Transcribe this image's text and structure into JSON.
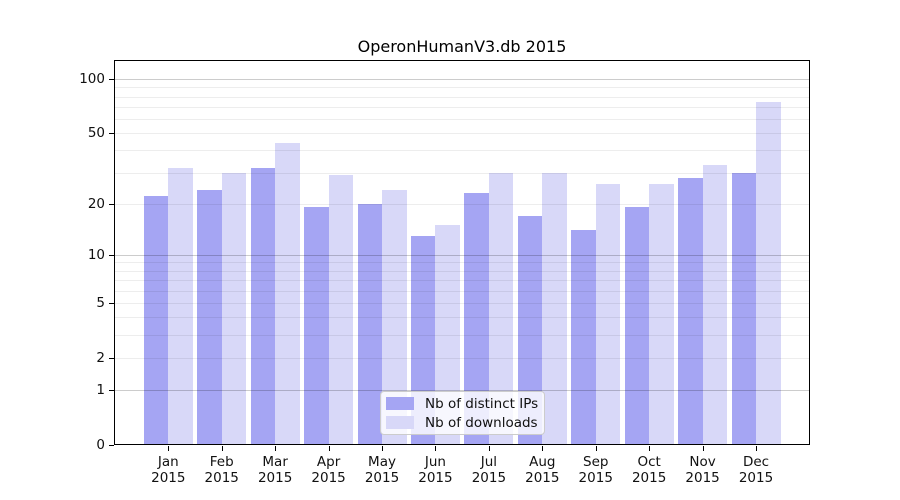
{
  "chart": {
    "title": "OperonHumanV3.db 2015",
    "legend": [
      {
        "label": "Nb of distinct IPs",
        "series": "distinct_ips"
      },
      {
        "label": "Nb of downloads",
        "series": "downloads"
      }
    ],
    "colors": {
      "distinct_ips": "#a5a5f3",
      "downloads": "#d8d8f8",
      "grid_minor": "rgba(0,0,0,0.07)",
      "grid_major": "rgba(0,0,0,0.20)",
      "spine": "#000000",
      "text": "#111111",
      "legend_bg": "rgba(255,255,255,0.8)",
      "legend_border": "#cccccc"
    }
  },
  "chart_data": {
    "type": "bar",
    "title": "OperonHumanV3.db 2015",
    "categories": [
      "Jan 2015",
      "Feb 2015",
      "Mar 2015",
      "Apr 2015",
      "May 2015",
      "Jun 2015",
      "Jul 2015",
      "Aug 2015",
      "Sep 2015",
      "Oct 2015",
      "Nov 2015",
      "Dec 2015"
    ],
    "series": [
      {
        "name": "Nb of distinct IPs",
        "color": "#a5a5f3",
        "values": [
          22,
          24,
          32,
          19,
          20,
          13,
          23,
          17,
          14,
          19,
          28,
          30
        ]
      },
      {
        "name": "Nb of downloads",
        "color": "#d8d8f8",
        "values": [
          32,
          30,
          44,
          29,
          24,
          15,
          30,
          30,
          26,
          26,
          33,
          75
        ]
      }
    ],
    "xlabel": "",
    "ylabel": "",
    "yscale": "symlog-ln(1+v)",
    "ylim": [
      0,
      127
    ],
    "y_ticks": [
      100,
      50,
      20,
      10,
      5,
      2,
      1,
      0
    ],
    "y_major_gridlines": [
      1,
      10,
      100
    ],
    "y_minor_gridlines": [
      2,
      3,
      4,
      5,
      6,
      7,
      8,
      9,
      20,
      30,
      40,
      50,
      60,
      70,
      80,
      90
    ],
    "grid": true,
    "legend_position": "lower center"
  }
}
